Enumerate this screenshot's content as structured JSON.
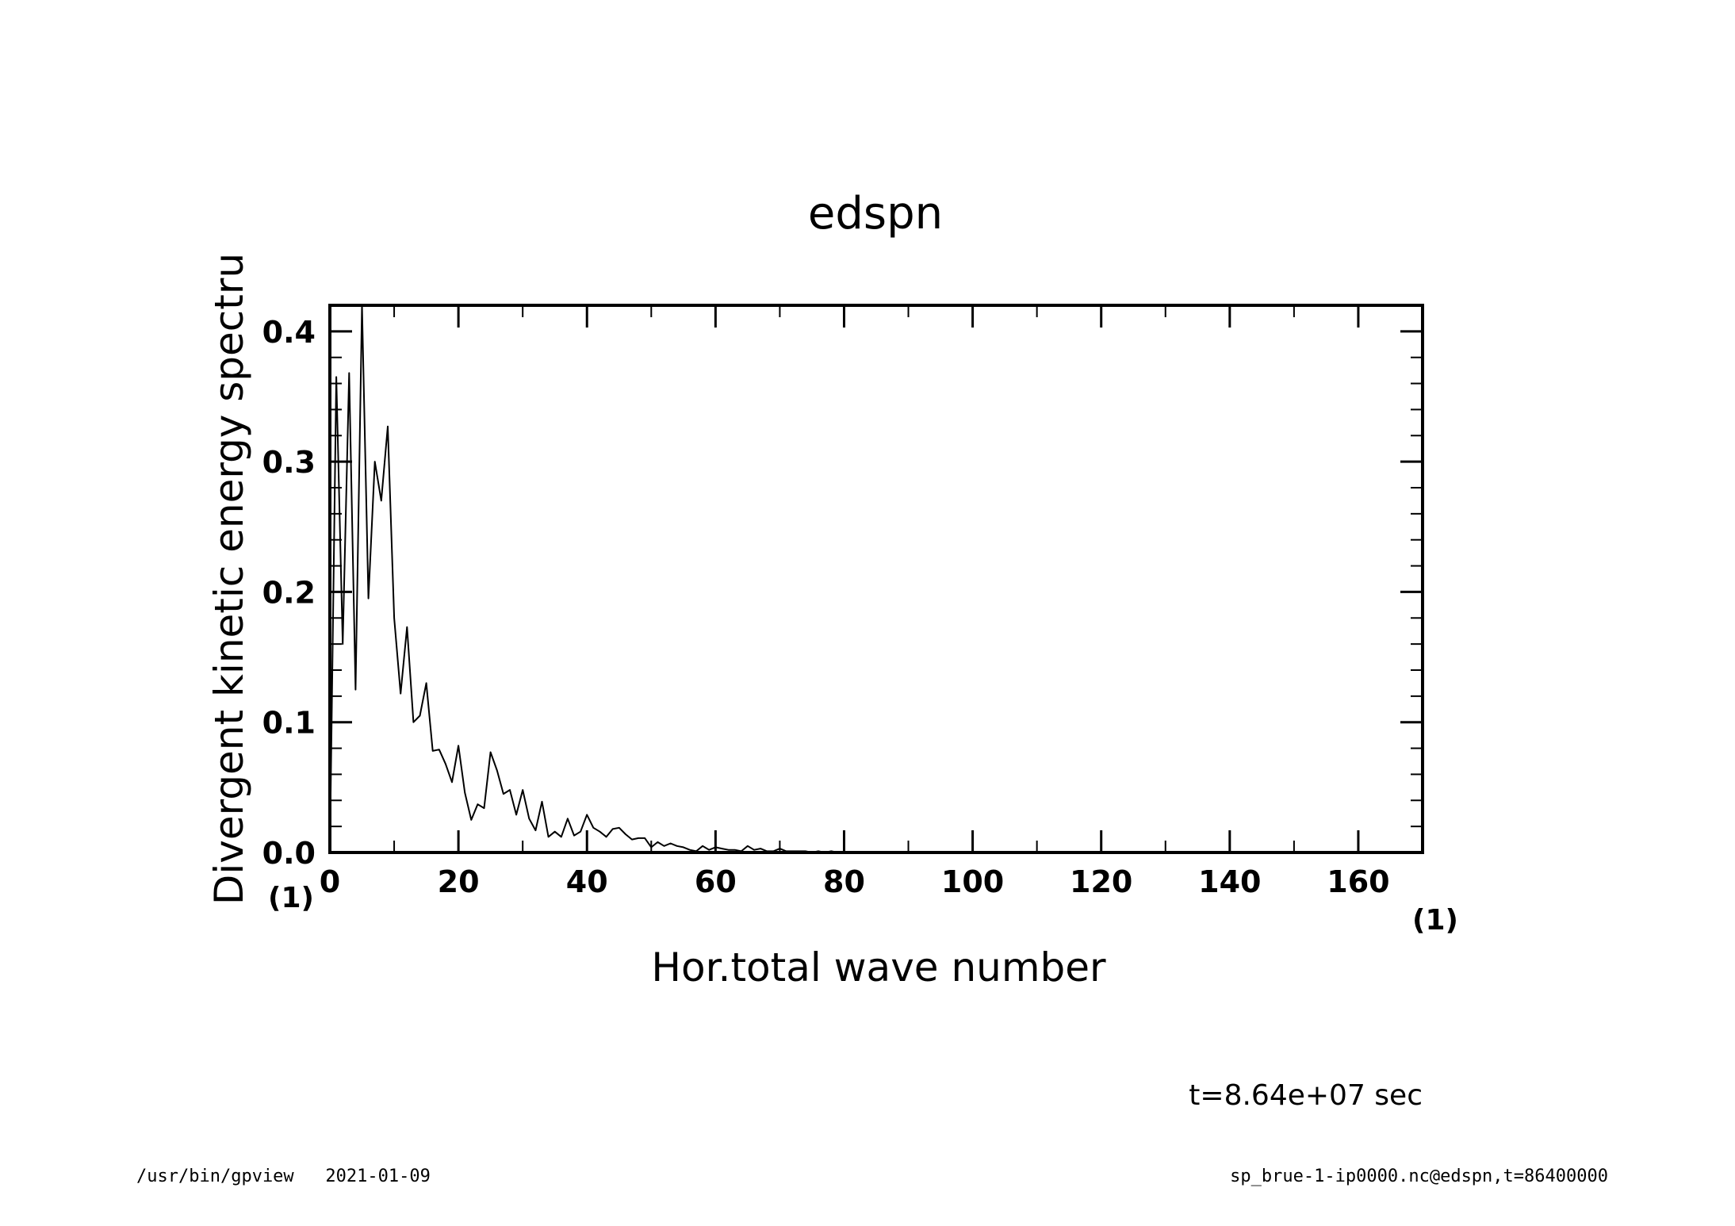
{
  "chart_data": {
    "type": "line",
    "title": "edspn",
    "xlabel": "Hor.total wave number",
    "ylabel": "Divergent kinetic energy spectru",
    "x_unit": "(1)",
    "y_unit": "(1)",
    "xlim": [
      0,
      170
    ],
    "ylim": [
      0,
      0.42
    ],
    "x_ticks": [
      0,
      20,
      40,
      60,
      80,
      100,
      120,
      140,
      160
    ],
    "x_tick_labels": [
      "0",
      "20",
      "40",
      "60",
      "80",
      "100",
      "120",
      "140",
      "160"
    ],
    "y_ticks": [
      0.0,
      0.1,
      0.2,
      0.3,
      0.4
    ],
    "y_tick_labels": [
      "0.0",
      "0.1",
      "0.2",
      "0.3",
      "0.4"
    ],
    "grid": false,
    "series": [
      {
        "x": [
          0,
          1,
          2,
          3,
          4,
          5,
          6,
          7,
          8,
          9,
          10,
          11,
          12,
          13,
          14,
          15,
          16,
          17,
          18,
          19,
          20,
          21,
          22,
          23,
          24,
          25,
          26,
          27,
          28,
          29,
          30,
          31,
          32,
          33,
          34,
          35,
          36,
          37,
          38,
          39,
          40,
          41,
          42,
          43,
          44,
          45,
          46,
          47,
          48,
          49,
          50,
          51,
          52,
          53,
          54,
          55,
          56,
          57,
          58,
          59,
          60,
          61,
          62,
          63,
          64,
          65,
          66,
          67,
          68,
          69,
          70,
          71,
          72,
          73,
          74,
          75,
          76,
          77,
          78,
          79,
          80
        ],
        "y": [
          0.0,
          0.365,
          0.16,
          0.368,
          0.125,
          0.42,
          0.195,
          0.3,
          0.27,
          0.327,
          0.18,
          0.122,
          0.173,
          0.1,
          0.105,
          0.13,
          0.078,
          0.079,
          0.068,
          0.054,
          0.082,
          0.046,
          0.025,
          0.037,
          0.034,
          0.077,
          0.063,
          0.045,
          0.048,
          0.029,
          0.048,
          0.026,
          0.017,
          0.039,
          0.012,
          0.016,
          0.012,
          0.026,
          0.013,
          0.016,
          0.029,
          0.019,
          0.016,
          0.012,
          0.018,
          0.019,
          0.014,
          0.01,
          0.011,
          0.011,
          0.004,
          0.008,
          0.005,
          0.007,
          0.005,
          0.004,
          0.002,
          0.001,
          0.005,
          0.002,
          0.004,
          0.003,
          0.002,
          0.002,
          0.001,
          0.005,
          0.002,
          0.003,
          0.001,
          0.001,
          0.003,
          0.001,
          0.001,
          0.001,
          0.001,
          0.0,
          0.001,
          0.0,
          0.001,
          0.0,
          0.0
        ]
      }
    ]
  },
  "annotation": {
    "time": "t=8.64e+07 sec"
  },
  "footer": {
    "left": "/usr/bin/gpview   2021-01-09",
    "right": "sp_brue-1-ip0000.nc@edspn,t=86400000"
  }
}
